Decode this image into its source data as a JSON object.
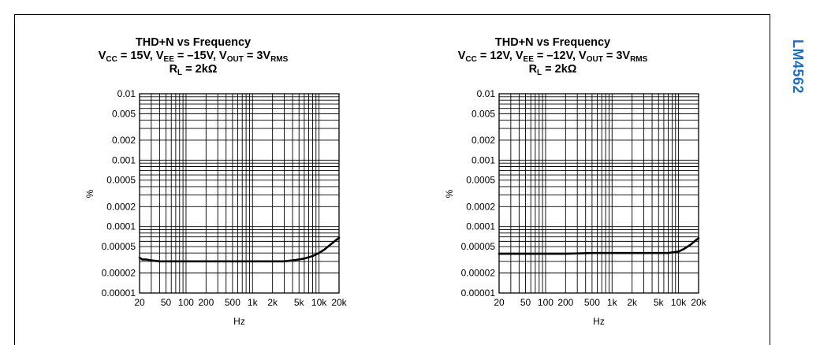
{
  "side_label": "LM4562",
  "side_label_color": "#1a6fc4",
  "chart_data": [
    {
      "type": "line",
      "title_lines": [
        [
          "THD+N vs Frequency"
        ],
        [
          "V",
          "CC",
          " = 15V, V",
          "EE",
          " = –15V, V",
          "OUT",
          " = 3V",
          "RMS"
        ],
        [
          "R",
          "L",
          " = 2kΩ"
        ]
      ],
      "xlabel": "Hz",
      "ylabel": "%",
      "xscale": "log",
      "yscale": "log",
      "xlim": [
        20,
        20000
      ],
      "ylim": [
        1e-05,
        0.01
      ],
      "xticks": [
        20,
        50,
        100,
        200,
        500,
        1000,
        2000,
        5000,
        10000,
        20000
      ],
      "xtick_labels": [
        "20",
        "50",
        "100",
        "200",
        "500",
        "1k",
        "2k",
        "5k",
        "10k",
        "20k"
      ],
      "yticks": [
        1e-05,
        2e-05,
        5e-05,
        0.0001,
        0.0002,
        0.0005,
        0.001,
        0.002,
        0.005,
        0.01
      ],
      "ytick_labels": [
        "0.00001",
        "0.00002",
        "0.00005",
        "0.0001",
        "0.0002",
        "0.0005",
        "0.001",
        "0.002",
        "0.005",
        "0.01"
      ],
      "grid": true,
      "series": [
        {
          "color": "#000000",
          "x": [
            20,
            22,
            25,
            30,
            40,
            50,
            70,
            100,
            200,
            500,
            1000,
            2000,
            3000,
            4000,
            5000,
            6000,
            8000,
            10000,
            12000,
            15000,
            20000
          ],
          "y": [
            3.4e-05,
            3.2e-05,
            3.2e-05,
            3.1e-05,
            3e-05,
            3e-05,
            3e-05,
            3e-05,
            3e-05,
            3e-05,
            3e-05,
            3e-05,
            3e-05,
            3.1e-05,
            3.2e-05,
            3.3e-05,
            3.6e-05,
            4e-05,
            4.5e-05,
            5.4e-05,
            6.8e-05
          ]
        }
      ]
    },
    {
      "type": "line",
      "title_lines": [
        [
          "THD+N vs Frequency"
        ],
        [
          "V",
          "CC",
          " = 12V, V",
          "EE",
          " = –12V, V",
          "OUT",
          " = 3V",
          "RMS"
        ],
        [
          "R",
          "L",
          " = 2kΩ"
        ]
      ],
      "xlabel": "Hz",
      "ylabel": "%",
      "xscale": "log",
      "yscale": "log",
      "xlim": [
        20,
        20000
      ],
      "ylim": [
        1e-05,
        0.01
      ],
      "xticks": [
        20,
        50,
        100,
        200,
        500,
        1000,
        2000,
        5000,
        10000,
        20000
      ],
      "xtick_labels": [
        "20",
        "50",
        "100",
        "200",
        "500",
        "1k",
        "2k",
        "5k",
        "10k",
        "20k"
      ],
      "yticks": [
        1e-05,
        2e-05,
        5e-05,
        0.0001,
        0.0002,
        0.0005,
        0.001,
        0.002,
        0.005,
        0.01
      ],
      "ytick_labels": [
        "0.00001",
        "0.00002",
        "0.00005",
        "0.0001",
        "0.0002",
        "0.0005",
        "0.001",
        "0.002",
        "0.005",
        "0.01"
      ],
      "grid": true,
      "series": [
        {
          "color": "#000000",
          "x": [
            20,
            30,
            50,
            100,
            200,
            500,
            1000,
            2000,
            5000,
            7000,
            10000,
            12000,
            15000,
            20000
          ],
          "y": [
            3.9e-05,
            3.9e-05,
            3.9e-05,
            3.9e-05,
            3.9e-05,
            4e-05,
            4e-05,
            4e-05,
            4e-05,
            4e-05,
            4.2e-05,
            4.6e-05,
            5.3e-05,
            6.7e-05
          ]
        }
      ]
    }
  ]
}
